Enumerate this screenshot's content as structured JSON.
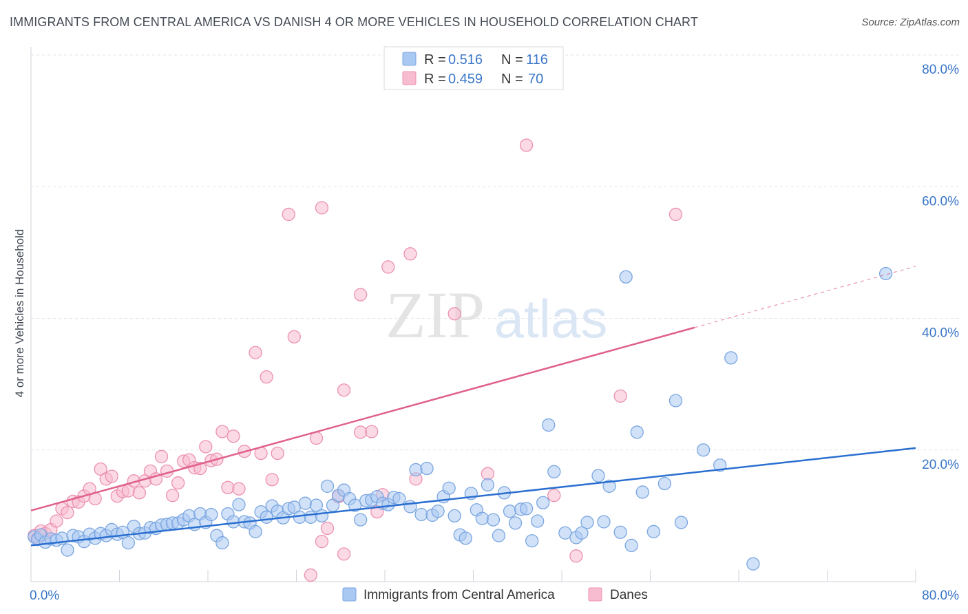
{
  "title": "IMMIGRANTS FROM CENTRAL AMERICA VS DANISH 4 OR MORE VEHICLES IN HOUSEHOLD CORRELATION CHART",
  "source": "Source: ZipAtlas.com",
  "watermark": {
    "zip": "ZIP",
    "atlas": "atlas"
  },
  "colors": {
    "blue_fill": "#a9c8f2",
    "blue_stroke": "#7aa6e0",
    "blue_line": "#2a6fd0",
    "pink_fill": "#f7bcd0",
    "pink_stroke": "#ec90b0",
    "pink_line": "#e0608c",
    "value_text": "#3a76c8",
    "grid": "#dfe3ea"
  },
  "legend": {
    "rows": [
      {
        "r_label": "R =",
        "r_value": "0.516",
        "n_label": "N =",
        "n_value": "116"
      },
      {
        "r_label": "R =",
        "r_value": "0.459",
        "n_label": "N =",
        "n_value": "70"
      }
    ]
  },
  "bottom_legend": [
    "Immigrants from Central America",
    "Danes"
  ],
  "chart_data": {
    "type": "scatter",
    "ylabel": "4 or more Vehicles in Household",
    "xlim": [
      0,
      80
    ],
    "ylim": [
      0,
      80
    ],
    "x_tick_labels": [
      {
        "value": 0,
        "label": "0.0%"
      },
      {
        "value": 80,
        "label": "80.0%"
      }
    ],
    "y_tick_labels": [
      {
        "value": 20,
        "label": "20.0%"
      },
      {
        "value": 40,
        "label": "40.0%"
      },
      {
        "value": 60,
        "label": "60.0%"
      },
      {
        "value": 80,
        "label": "80.0%"
      }
    ],
    "grid": true,
    "legend_position": "top-center",
    "series": [
      {
        "name": "Immigrants from Central America",
        "r": 0.516,
        "n": 116,
        "trend": {
          "x0": 0,
          "y0": 5.5,
          "x1": 80,
          "y1": 20.3
        },
        "points": [
          [
            0.3,
            6.8
          ],
          [
            0.6,
            6.4
          ],
          [
            0.9,
            7.1
          ],
          [
            1.3,
            6.0
          ],
          [
            1.8,
            6.5
          ],
          [
            2.3,
            6.3
          ],
          [
            2.8,
            6.6
          ],
          [
            3.3,
            4.8
          ],
          [
            3.8,
            7.0
          ],
          [
            4.3,
            6.8
          ],
          [
            4.8,
            6.1
          ],
          [
            5.3,
            7.2
          ],
          [
            5.8,
            6.6
          ],
          [
            6.3,
            7.3
          ],
          [
            6.8,
            7.0
          ],
          [
            7.3,
            7.9
          ],
          [
            7.8,
            7.2
          ],
          [
            8.3,
            7.5
          ],
          [
            8.8,
            5.9
          ],
          [
            9.3,
            8.4
          ],
          [
            9.8,
            7.3
          ],
          [
            10.3,
            7.4
          ],
          [
            10.8,
            8.2
          ],
          [
            11.3,
            8.1
          ],
          [
            11.8,
            8.6
          ],
          [
            12.3,
            8.7
          ],
          [
            12.8,
            8.9
          ],
          [
            13.3,
            8.9
          ],
          [
            13.8,
            9.4
          ],
          [
            14.3,
            10.0
          ],
          [
            14.8,
            8.7
          ],
          [
            15.3,
            10.3
          ],
          [
            15.8,
            9.0
          ],
          [
            16.3,
            10.2
          ],
          [
            16.8,
            7.0
          ],
          [
            17.3,
            5.9
          ],
          [
            17.8,
            10.3
          ],
          [
            18.3,
            9.1
          ],
          [
            18.8,
            11.7
          ],
          [
            19.3,
            9.1
          ],
          [
            19.8,
            8.9
          ],
          [
            20.3,
            7.6
          ],
          [
            20.8,
            10.6
          ],
          [
            21.3,
            9.8
          ],
          [
            21.8,
            11.5
          ],
          [
            22.3,
            10.7
          ],
          [
            22.8,
            9.7
          ],
          [
            23.3,
            11.1
          ],
          [
            23.8,
            11.3
          ],
          [
            24.3,
            9.8
          ],
          [
            24.8,
            11.9
          ],
          [
            25.3,
            9.8
          ],
          [
            25.8,
            11.6
          ],
          [
            26.3,
            10.0
          ],
          [
            26.8,
            14.5
          ],
          [
            27.3,
            11.6
          ],
          [
            27.8,
            13.1
          ],
          [
            28.3,
            13.9
          ],
          [
            28.8,
            12.6
          ],
          [
            29.3,
            11.6
          ],
          [
            29.8,
            9.4
          ],
          [
            30.3,
            12.3
          ],
          [
            30.8,
            12.4
          ],
          [
            31.3,
            12.9
          ],
          [
            31.8,
            11.9
          ],
          [
            32.3,
            11.7
          ],
          [
            32.8,
            12.8
          ],
          [
            33.3,
            12.6
          ],
          [
            34.3,
            11.4
          ],
          [
            34.8,
            17.0
          ],
          [
            35.3,
            10.2
          ],
          [
            35.8,
            17.2
          ],
          [
            36.3,
            10.1
          ],
          [
            36.8,
            10.7
          ],
          [
            37.3,
            12.9
          ],
          [
            37.8,
            14.2
          ],
          [
            38.3,
            10.0
          ],
          [
            38.8,
            7.1
          ],
          [
            39.3,
            6.6
          ],
          [
            39.8,
            13.4
          ],
          [
            40.3,
            10.9
          ],
          [
            40.8,
            9.6
          ],
          [
            41.3,
            14.7
          ],
          [
            41.8,
            9.4
          ],
          [
            42.3,
            7.0
          ],
          [
            42.8,
            13.5
          ],
          [
            43.3,
            10.7
          ],
          [
            43.8,
            8.9
          ],
          [
            44.3,
            11.0
          ],
          [
            44.8,
            11.1
          ],
          [
            45.3,
            6.2
          ],
          [
            45.8,
            9.2
          ],
          [
            46.3,
            12.0
          ],
          [
            46.8,
            23.8
          ],
          [
            47.3,
            16.7
          ],
          [
            48.3,
            7.4
          ],
          [
            49.3,
            6.7
          ],
          [
            49.8,
            7.4
          ],
          [
            50.3,
            9.0
          ],
          [
            51.3,
            16.1
          ],
          [
            51.8,
            9.1
          ],
          [
            52.3,
            14.5
          ],
          [
            53.3,
            7.5
          ],
          [
            53.8,
            46.3
          ],
          [
            54.3,
            5.5
          ],
          [
            54.8,
            22.7
          ],
          [
            55.3,
            13.6
          ],
          [
            56.3,
            7.6
          ],
          [
            57.3,
            14.9
          ],
          [
            58.3,
            27.5
          ],
          [
            58.8,
            9.0
          ],
          [
            62.3,
            17.7
          ],
          [
            63.3,
            34.0
          ],
          [
            65.3,
            2.7
          ],
          [
            77.3,
            46.8
          ],
          [
            60.8,
            20.0
          ]
        ]
      },
      {
        "name": "Danes",
        "r": 0.459,
        "n": 70,
        "trend": {
          "x0": 0,
          "y0": 10.8,
          "x1": 60,
          "y1": 38.6,
          "dash_x1": 80,
          "dash_y1": 47.9
        },
        "points": [
          [
            0.3,
            7.0
          ],
          [
            0.6,
            6.6
          ],
          [
            0.9,
            7.7
          ],
          [
            1.3,
            7.3
          ],
          [
            1.8,
            7.9
          ],
          [
            2.3,
            9.2
          ],
          [
            2.8,
            11.1
          ],
          [
            3.3,
            10.5
          ],
          [
            3.8,
            12.2
          ],
          [
            4.3,
            12.1
          ],
          [
            4.8,
            13.0
          ],
          [
            5.3,
            14.1
          ],
          [
            5.8,
            12.6
          ],
          [
            6.3,
            17.1
          ],
          [
            6.8,
            15.6
          ],
          [
            7.3,
            16.0
          ],
          [
            7.8,
            13.0
          ],
          [
            8.3,
            13.7
          ],
          [
            8.8,
            13.8
          ],
          [
            9.3,
            15.3
          ],
          [
            9.8,
            13.5
          ],
          [
            10.3,
            15.3
          ],
          [
            10.8,
            16.8
          ],
          [
            11.3,
            15.6
          ],
          [
            11.8,
            19.0
          ],
          [
            12.3,
            16.8
          ],
          [
            12.8,
            13.1
          ],
          [
            13.3,
            15.0
          ],
          [
            13.8,
            18.3
          ],
          [
            14.3,
            18.5
          ],
          [
            14.8,
            17.3
          ],
          [
            15.3,
            17.2
          ],
          [
            15.8,
            20.5
          ],
          [
            16.3,
            18.4
          ],
          [
            16.8,
            18.6
          ],
          [
            17.3,
            22.8
          ],
          [
            17.8,
            14.3
          ],
          [
            18.3,
            22.1
          ],
          [
            18.8,
            14.1
          ],
          [
            19.3,
            19.8
          ],
          [
            20.3,
            34.8
          ],
          [
            20.8,
            19.5
          ],
          [
            21.3,
            31.1
          ],
          [
            21.8,
            15.5
          ],
          [
            22.3,
            19.5
          ],
          [
            23.3,
            55.8
          ],
          [
            23.8,
            37.2
          ],
          [
            25.3,
            1.0
          ],
          [
            25.8,
            21.8
          ],
          [
            26.3,
            56.8
          ],
          [
            26.3,
            6.1
          ],
          [
            26.8,
            8.1
          ],
          [
            27.8,
            12.9
          ],
          [
            28.3,
            29.1
          ],
          [
            28.3,
            4.2
          ],
          [
            29.8,
            43.6
          ],
          [
            29.8,
            22.7
          ],
          [
            30.8,
            22.8
          ],
          [
            31.3,
            10.6
          ],
          [
            31.8,
            13.2
          ],
          [
            32.3,
            47.8
          ],
          [
            34.3,
            49.8
          ],
          [
            34.8,
            15.6
          ],
          [
            38.3,
            40.7
          ],
          [
            41.3,
            16.4
          ],
          [
            44.8,
            66.3
          ],
          [
            47.3,
            13.1
          ],
          [
            49.3,
            3.9
          ],
          [
            53.3,
            28.2
          ],
          [
            58.3,
            55.8
          ]
        ]
      }
    ]
  }
}
